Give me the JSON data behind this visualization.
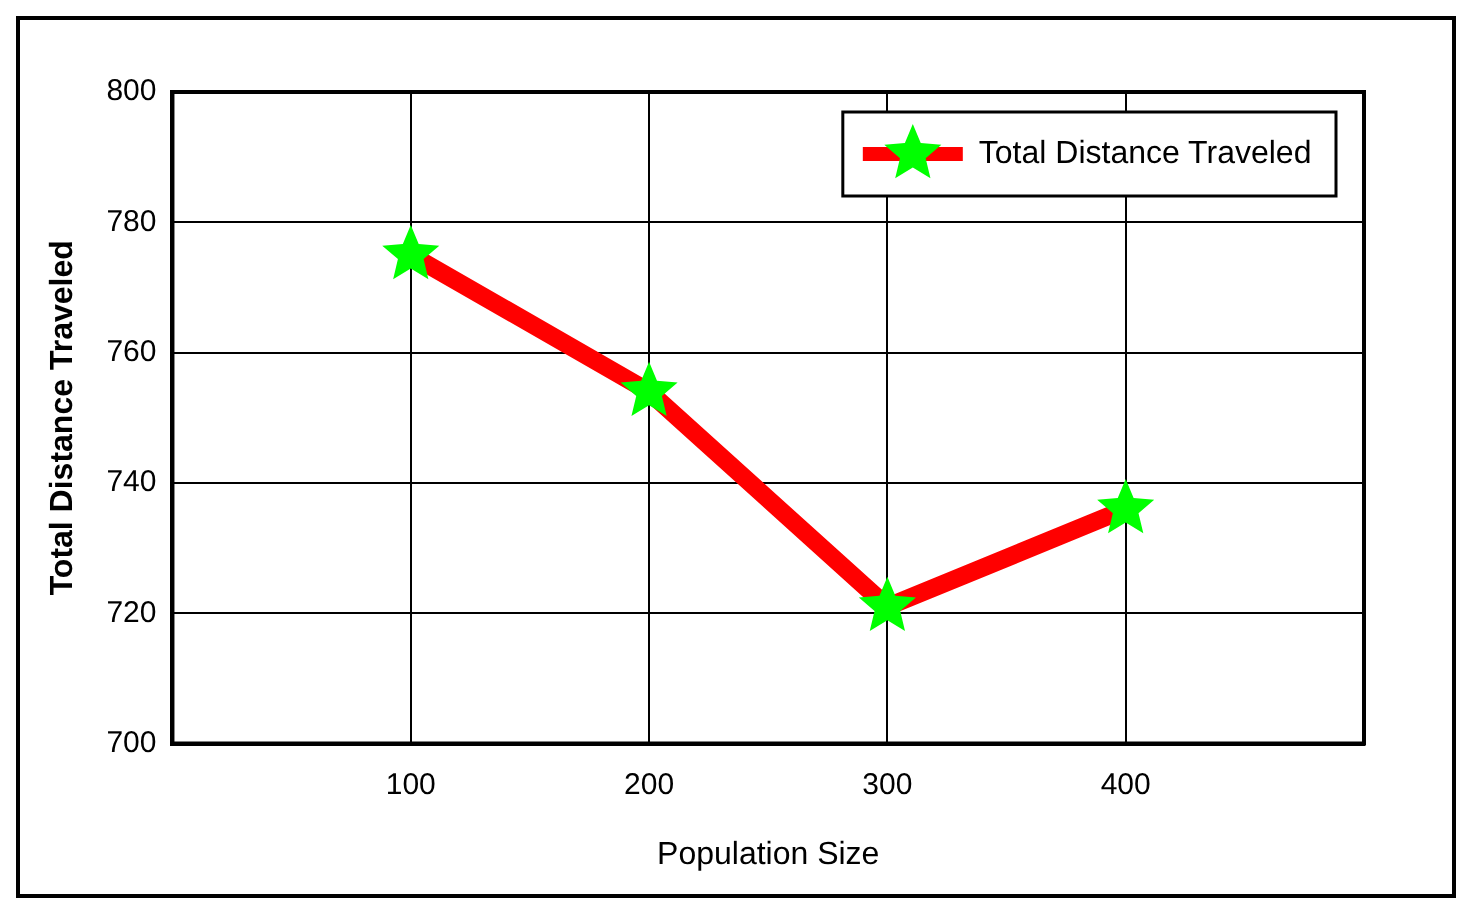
{
  "chart_data": {
    "type": "line",
    "xlabel": "Population Size",
    "ylabel": "Total Distance Traveled",
    "x": [
      100,
      200,
      300,
      400
    ],
    "series": [
      {
        "name": "Total Distance Traveled",
        "color": "#ff0000",
        "values": [
          775,
          754,
          721,
          736
        ]
      }
    ],
    "xlim": [
      0,
      500
    ],
    "xticks": [
      100,
      200,
      300,
      400
    ],
    "ylim": [
      700,
      800
    ],
    "yticks": [
      700,
      720,
      740,
      760,
      780,
      800
    ],
    "grid": true,
    "legend": "top right",
    "marker": "star",
    "line_style": "solid"
  }
}
